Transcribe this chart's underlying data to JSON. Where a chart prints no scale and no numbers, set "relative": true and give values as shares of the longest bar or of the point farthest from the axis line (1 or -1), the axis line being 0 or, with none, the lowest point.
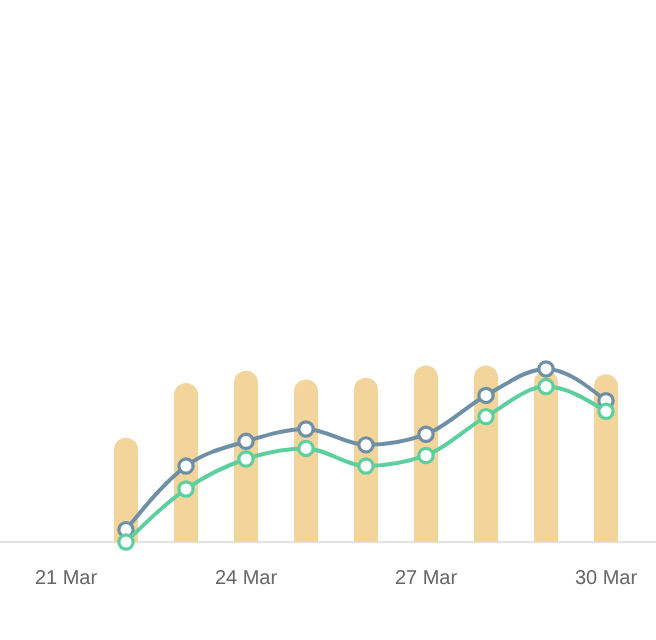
{
  "chart_data": {
    "type": "bar",
    "relative": true,
    "marker": "circle",
    "categories": [
      "21 Mar",
      null,
      null,
      "24 Mar",
      null,
      null,
      "27 Mar",
      null,
      null,
      "30 Mar"
    ],
    "series": [
      {
        "color": "#f3d49b",
        "values": [
          null,
          0.59,
          0.9,
          0.97,
          0.92,
          0.93,
          1,
          1,
          0.97,
          0.95
        ]
      },
      {
        "type": "line",
        "color": "#6f8fa6",
        "values": [
          null,
          0.07,
          0.43,
          0.57,
          0.64,
          0.55,
          0.61,
          0.83,
          0.98,
          0.8
        ]
      },
      {
        "type": "line",
        "color": "#5ccf9f",
        "values": [
          null,
          0,
          0.3,
          0.47,
          0.53,
          0.43,
          0.49,
          0.71,
          0.88,
          0.74
        ]
      }
    ]
  }
}
